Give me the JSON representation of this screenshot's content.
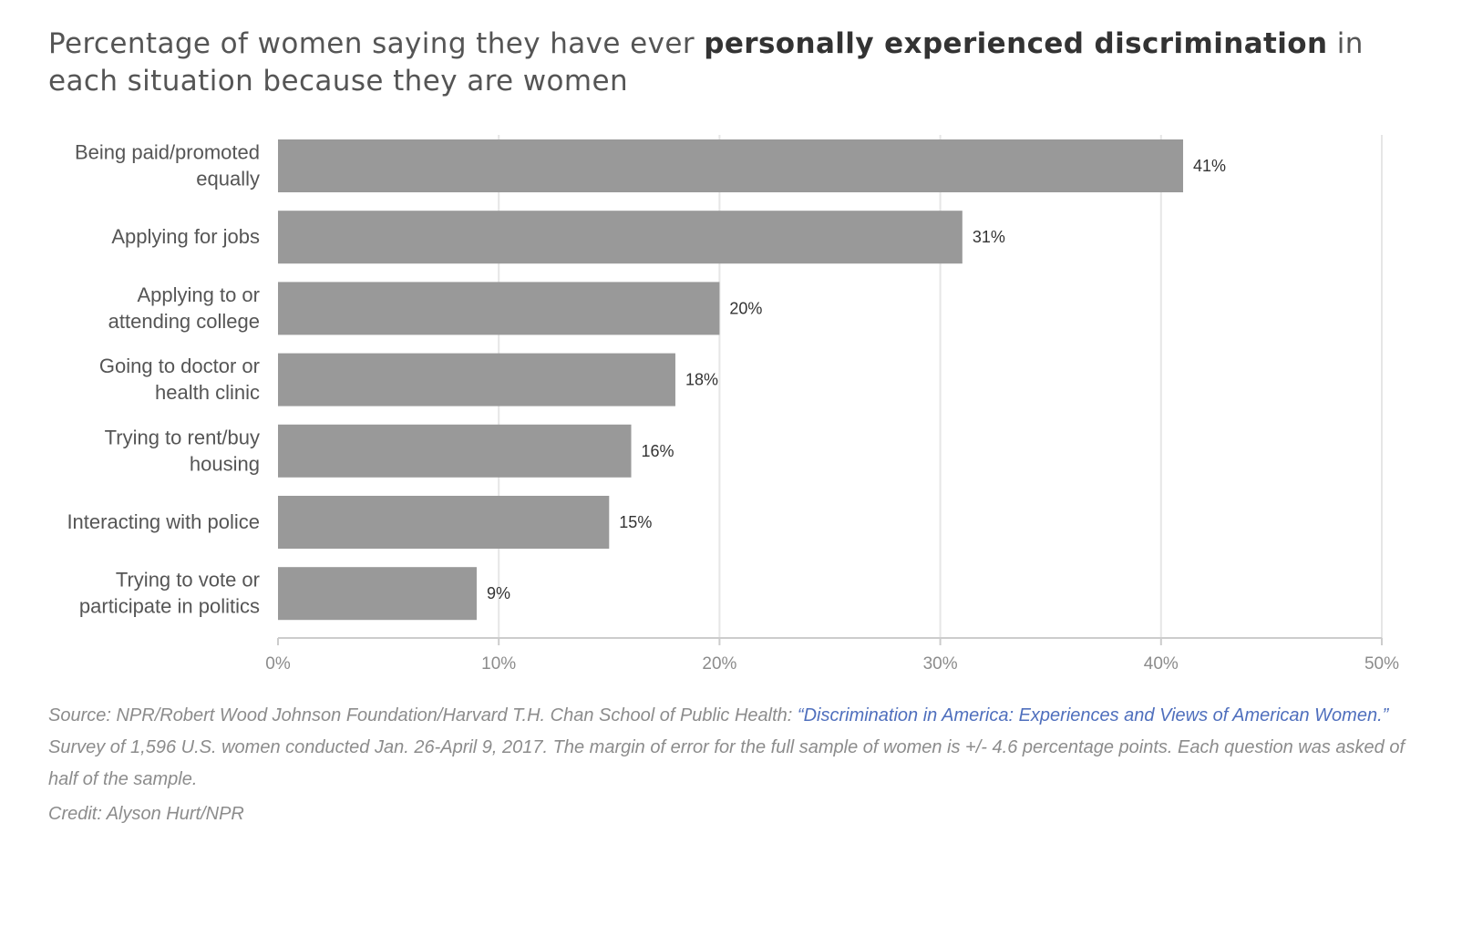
{
  "title": {
    "prefix": "Percentage of women saying they have ever ",
    "emphasis": "personally experienced discrimination",
    "suffix": " in each situation because they are women"
  },
  "chart_data": {
    "type": "bar",
    "orientation": "horizontal",
    "categories": [
      [
        "Being paid/promoted",
        "equally"
      ],
      [
        "Applying for jobs"
      ],
      [
        "Applying to or",
        "attending college"
      ],
      [
        "Going to doctor or",
        "health clinic"
      ],
      [
        "Trying to rent/buy",
        "housing"
      ],
      [
        "Interacting with police"
      ],
      [
        "Trying to vote or",
        "participate in politics"
      ]
    ],
    "values": [
      41,
      31,
      20,
      18,
      16,
      15,
      9
    ],
    "value_labels": [
      "41%",
      "31%",
      "20%",
      "18%",
      "16%",
      "15%",
      "9%"
    ],
    "xlim": [
      0,
      50
    ],
    "ticks": [
      0,
      10,
      20,
      30,
      40,
      50
    ],
    "tick_labels": [
      "0%",
      "10%",
      "20%",
      "30%",
      "40%",
      "50%"
    ],
    "grid": true,
    "bar_color": "#999999",
    "grid_color": "#e6e6e6",
    "axis_color": "#cccccc"
  },
  "notes": {
    "source_prefix": "Source: NPR/Robert Wood Johnson Foundation/Harvard T.H. Chan School of Public Health: ",
    "source_link": "“Discrimination in America: Experiences and Views of American Women.”",
    "source_suffix": " Survey of 1,596 U.S. women conducted Jan. 26-April 9, 2017. The margin of error for the full sample of women is +/- 4.6 percentage points. Each question was asked of half of the sample.",
    "credit": "Credit: Alyson Hurt/NPR"
  }
}
